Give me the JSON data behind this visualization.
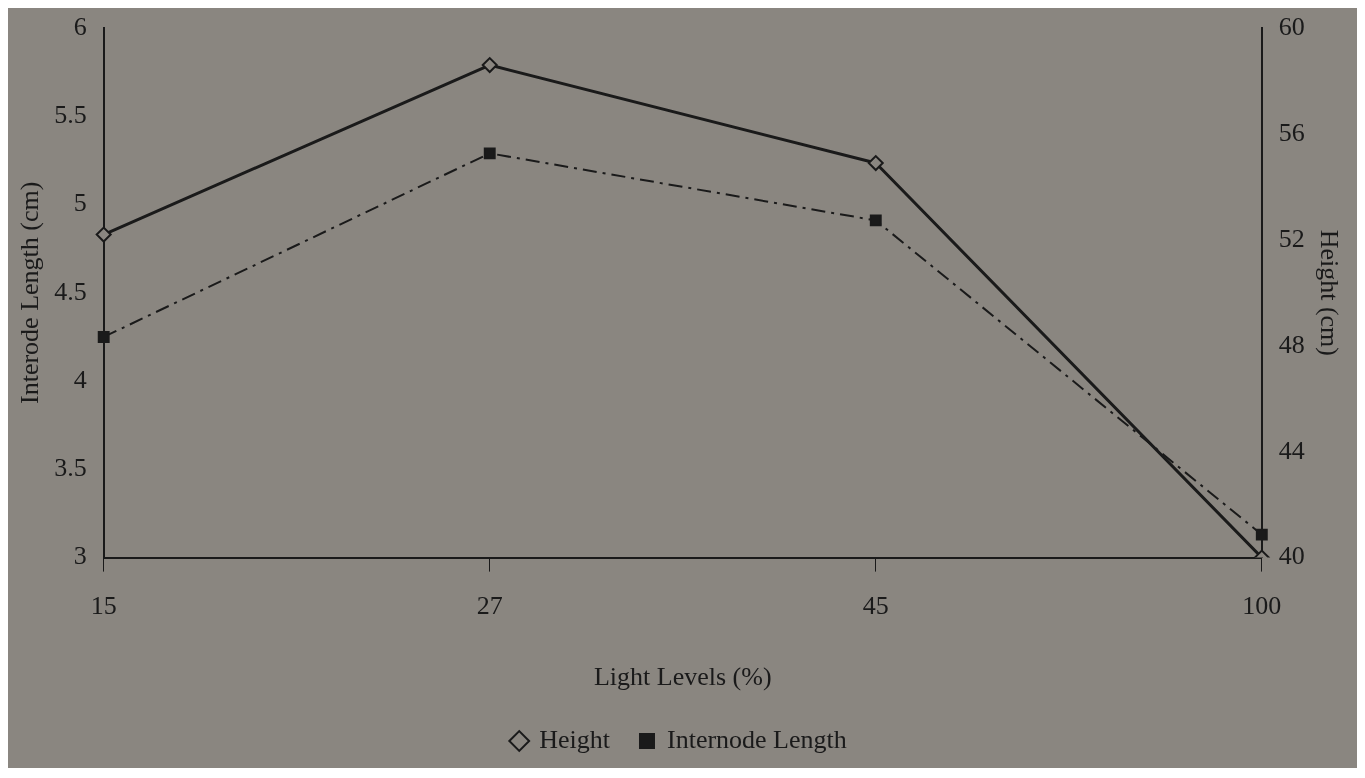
{
  "chart_data": {
    "type": "line",
    "xlabel": "Light Levels (%)",
    "ylabel": "Interode Length (cm)",
    "y2label": "Height (cm)",
    "categories": [
      "15",
      "27",
      "45",
      "100"
    ],
    "series": [
      {
        "name": "Height",
        "color": "#1a1a1a",
        "values": [
          52.2,
          58.6,
          54.9,
          40.0
        ],
        "axis": "y2",
        "marker": "diamond",
        "line_style": "solid"
      },
      {
        "name": "Internode Length",
        "color": "#1a1a1a",
        "values": [
          4.25,
          5.29,
          4.91,
          3.13
        ],
        "marker": "square",
        "line_style": "dashed"
      }
    ],
    "ylim": [
      3,
      6
    ],
    "yticks": [
      3,
      3.5,
      4,
      4.5,
      5,
      5.5,
      6
    ],
    "y2lim": [
      40,
      60
    ],
    "y2ticks": [
      40,
      44,
      48,
      52,
      56,
      60
    ],
    "grid": false,
    "legend": "bottom"
  }
}
